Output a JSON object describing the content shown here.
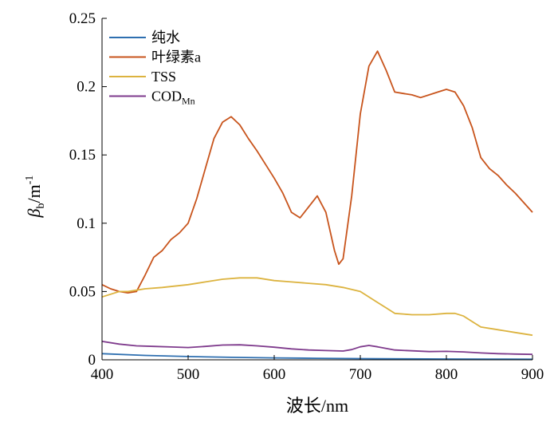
{
  "chart_data": {
    "type": "line",
    "xlabel": "波长/nm",
    "ylabel": {
      "symbol": "β",
      "subscript": "b",
      "unit": "/m",
      "superscript": "-1"
    },
    "xlim": [
      400,
      900
    ],
    "ylim": [
      0,
      0.25
    ],
    "xticks": [
      400,
      500,
      600,
      700,
      800,
      900
    ],
    "yticks": [
      0,
      0.05,
      0.1,
      0.15,
      0.2,
      0.25
    ],
    "ytick_labels": [
      "0",
      "0.05",
      "0.1",
      "0.15",
      "0.2",
      "0.25"
    ],
    "grid": false,
    "legend_position": "top-left",
    "series": [
      {
        "name": "纯水",
        "name_subscript": "",
        "color": "#2e6fb0",
        "x": [
          400,
          450,
          500,
          550,
          600,
          650,
          700,
          750,
          800,
          850,
          900
        ],
        "y": [
          0.0045,
          0.0032,
          0.0024,
          0.0018,
          0.0014,
          0.0011,
          0.0009,
          0.0007,
          0.0006,
          0.0005,
          0.0004
        ]
      },
      {
        "name": "叶绿素a",
        "name_subscript": "",
        "color": "#c8541c",
        "x": [
          400,
          410,
          420,
          430,
          440,
          450,
          460,
          470,
          480,
          490,
          500,
          510,
          520,
          530,
          540,
          550,
          560,
          570,
          580,
          590,
          600,
          610,
          620,
          630,
          640,
          650,
          660,
          670,
          675,
          680,
          690,
          700,
          710,
          720,
          730,
          740,
          750,
          760,
          770,
          780,
          790,
          800,
          810,
          820,
          830,
          840,
          850,
          860,
          870,
          880,
          890,
          900
        ],
        "y": [
          0.055,
          0.052,
          0.05,
          0.049,
          0.05,
          0.062,
          0.075,
          0.08,
          0.088,
          0.093,
          0.1,
          0.118,
          0.14,
          0.162,
          0.174,
          0.178,
          0.172,
          0.162,
          0.153,
          0.143,
          0.133,
          0.122,
          0.108,
          0.104,
          0.112,
          0.12,
          0.108,
          0.08,
          0.07,
          0.074,
          0.12,
          0.18,
          0.215,
          0.226,
          0.212,
          0.196,
          0.195,
          0.194,
          0.192,
          0.194,
          0.196,
          0.198,
          0.196,
          0.186,
          0.17,
          0.148,
          0.14,
          0.135,
          0.128,
          0.122,
          0.115,
          0.108
        ]
      },
      {
        "name": "TSS",
        "name_subscript": "",
        "color": "#dcb33f",
        "x": [
          400,
          410,
          420,
          430,
          440,
          450,
          470,
          500,
          520,
          540,
          560,
          580,
          600,
          620,
          640,
          660,
          680,
          700,
          710,
          720,
          730,
          740,
          760,
          780,
          800,
          810,
          820,
          830,
          840,
          860,
          880,
          900
        ],
        "y": [
          0.046,
          0.048,
          0.05,
          0.05,
          0.051,
          0.052,
          0.053,
          0.055,
          0.057,
          0.059,
          0.06,
          0.06,
          0.058,
          0.057,
          0.056,
          0.055,
          0.053,
          0.05,
          0.046,
          0.042,
          0.038,
          0.034,
          0.033,
          0.033,
          0.034,
          0.034,
          0.032,
          0.028,
          0.024,
          0.022,
          0.02,
          0.018
        ]
      },
      {
        "name": "COD",
        "name_subscript": "Mn",
        "color": "#7e3a8c",
        "x": [
          400,
          420,
          440,
          460,
          480,
          500,
          520,
          540,
          560,
          580,
          600,
          620,
          640,
          660,
          680,
          690,
          700,
          710,
          720,
          740,
          760,
          780,
          800,
          820,
          840,
          860,
          880,
          900
        ],
        "y": [
          0.0135,
          0.0115,
          0.0102,
          0.0098,
          0.0094,
          0.009,
          0.0098,
          0.0108,
          0.011,
          0.0102,
          0.0092,
          0.008,
          0.0072,
          0.0068,
          0.0064,
          0.0075,
          0.0095,
          0.0105,
          0.0095,
          0.0072,
          0.0066,
          0.006,
          0.0062,
          0.0058,
          0.005,
          0.0045,
          0.0042,
          0.004
        ]
      }
    ]
  }
}
